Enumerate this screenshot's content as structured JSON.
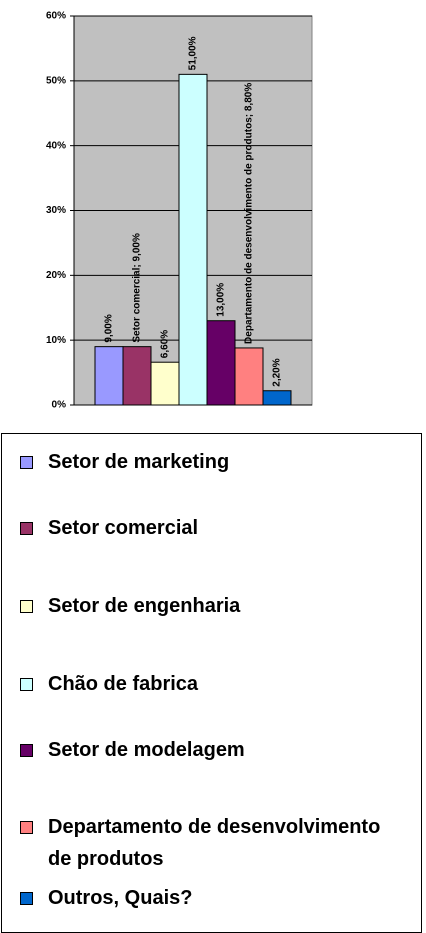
{
  "chart_data": {
    "type": "bar",
    "categories": [
      "Setor de marketing",
      "Setor comercial",
      "Setor de engenharia",
      "Chão de fabrica",
      "Setor de modelagem",
      "Departamento de desenvolvimento de produtos",
      "Outros, Quais?"
    ],
    "values": [
      9,
      9,
      6.6,
      51,
      13,
      8.8,
      2.2
    ],
    "value_labels": [
      "9,00%",
      "Setor comercial; 9,00%",
      "6,60%",
      "51,00%",
      "13,00%",
      "Departamento de desenvolvimento de produtos; 8,80%",
      "2,20%"
    ],
    "colors": [
      "#9999ff",
      "#993366",
      "#ffffcc",
      "#ccffff",
      "#660066",
      "#ff8080",
      "#0066cc"
    ],
    "ylim": [
      0,
      60
    ],
    "yticks": [
      {
        "value": 0,
        "label": "0%"
      },
      {
        "value": 10,
        "label": "10%"
      },
      {
        "value": 20,
        "label": "20%"
      },
      {
        "value": 30,
        "label": "30%"
      },
      {
        "value": 40,
        "label": "40%"
      },
      {
        "value": 50,
        "label": "50%"
      },
      {
        "value": 60,
        "label": "60%"
      }
    ],
    "grid": true
  }
}
